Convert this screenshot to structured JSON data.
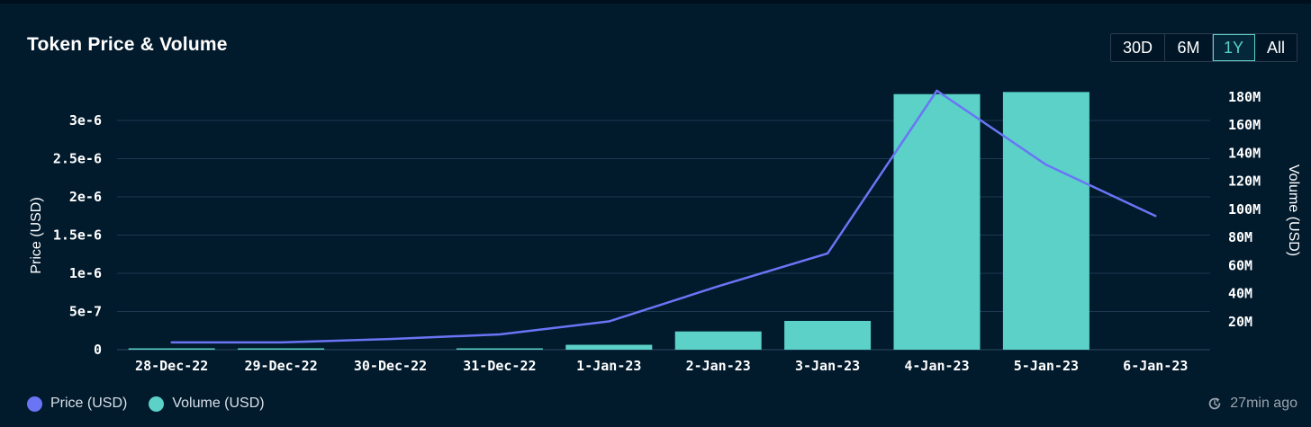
{
  "colors": {
    "background": "#011a2c",
    "price": "#6a75f5",
    "volume": "#5bd1c8",
    "grid": "#1d3a50"
  },
  "range_selector": {
    "options": [
      "30D",
      "6M",
      "1Y",
      "All"
    ],
    "selected": "1Y"
  },
  "legend": {
    "items": [
      {
        "label": "Price (USD)",
        "color": "#6a75f5"
      },
      {
        "label": "Volume (USD)",
        "color": "#5bd1c8"
      }
    ]
  },
  "footer": {
    "updated": "27min ago",
    "icon": "refresh-icon"
  },
  "chart_data": {
    "type": "bar",
    "title": "Token Price & Volume",
    "categories": [
      "28-Dec-22",
      "29-Dec-22",
      "30-Dec-22",
      "31-Dec-22",
      "1-Jan-23",
      "2-Jan-23",
      "3-Jan-23",
      "4-Jan-23",
      "5-Jan-23",
      "6-Jan-23"
    ],
    "series": [
      {
        "name": "Price (USD)",
        "type": "line",
        "axis": "left",
        "values": [
          9.5e-08,
          9.5e-08,
          1.4e-07,
          2e-07,
          3.7e-07,
          8.3e-07,
          1.26e-06,
          3.39e-06,
          2.42e-06,
          1.75e-06
        ]
      },
      {
        "name": "Volume (USD)",
        "type": "bar",
        "axis": "right",
        "values": [
          400000,
          400000,
          0,
          400000,
          3500000,
          13000000,
          20500000,
          182000000,
          183500000,
          0
        ]
      }
    ],
    "y_left": {
      "label": "Price (USD)",
      "ticks": [
        0,
        5e-07,
        1e-06,
        1.5e-06,
        2e-06,
        2.5e-06,
        3e-06
      ],
      "tick_labels": [
        "0",
        "5e-7",
        "1e-6",
        "1.5e-6",
        "2e-6",
        "2.5e-6",
        "3e-6"
      ],
      "range": [
        0,
        3.4e-06
      ]
    },
    "y_right": {
      "label": "Volume (USD)",
      "ticks": [
        20000000,
        40000000,
        60000000,
        80000000,
        100000000,
        120000000,
        140000000,
        160000000,
        180000000
      ],
      "tick_labels": [
        "20M",
        "40M",
        "60M",
        "80M",
        "100M",
        "120M",
        "140M",
        "160M",
        "180M"
      ],
      "range": [
        0,
        185000000
      ]
    },
    "grid": true,
    "legend_position": "bottom-left"
  }
}
